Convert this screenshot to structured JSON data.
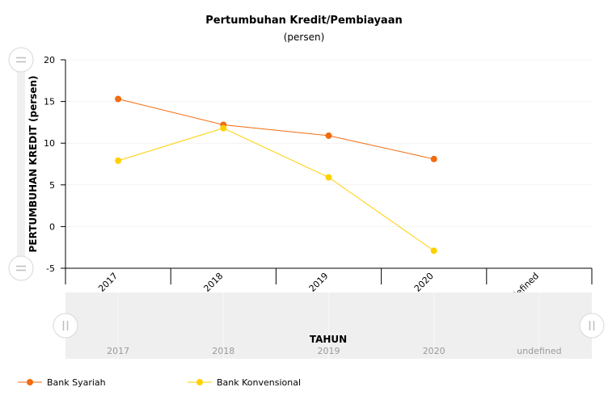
{
  "chart_data": {
    "type": "line",
    "title": "Pertumbuhan Kredit/Pembiayaan",
    "subtitle": "(persen)",
    "xlabel": "TAHUN",
    "ylabel": "PERTUMBUHAN KREDIT (persen)",
    "categories": [
      "2017",
      "2018",
      "2019",
      "2020",
      "undefined"
    ],
    "ylim": [
      -5,
      20
    ],
    "yticks": [
      20,
      15,
      10,
      5,
      0,
      -5
    ],
    "grid": true,
    "legend_position": "bottom-left",
    "series": [
      {
        "name": "Bank Syariah",
        "color": "#f26b10",
        "values": [
          15.3,
          12.2,
          10.9,
          8.1,
          null
        ]
      },
      {
        "name": "Bank Konvensional",
        "color": "#ffd000",
        "values": [
          7.9,
          11.8,
          5.9,
          -2.9,
          null
        ]
      }
    ]
  }
}
